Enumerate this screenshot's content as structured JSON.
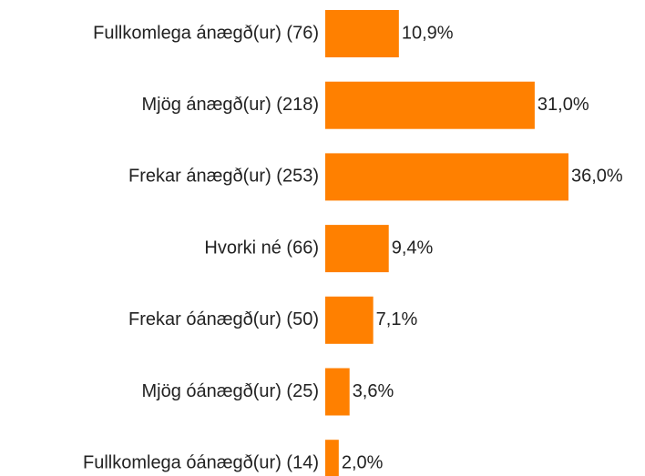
{
  "chart_data": {
    "type": "hbar",
    "categories": [
      "Fullkomlega ánægð(ur) (76)",
      "Mjög ánægð(ur) (218)",
      "Frekar ánægð(ur) (253)",
      "Hvorki né (66)",
      "Frekar óánægð(ur) (50)",
      "Mjög óánægð(ur) (25)",
      "Fullkomlega óánægð(ur) (14)"
    ],
    "values": [
      10.9,
      31.0,
      36.0,
      9.4,
      7.1,
      3.6,
      2.0
    ],
    "value_labels": [
      "10,9%",
      "31,0%",
      "36,0%",
      "9,4%",
      "7,1%",
      "3,6%",
      "2,0%"
    ],
    "color": "#ff8000"
  }
}
